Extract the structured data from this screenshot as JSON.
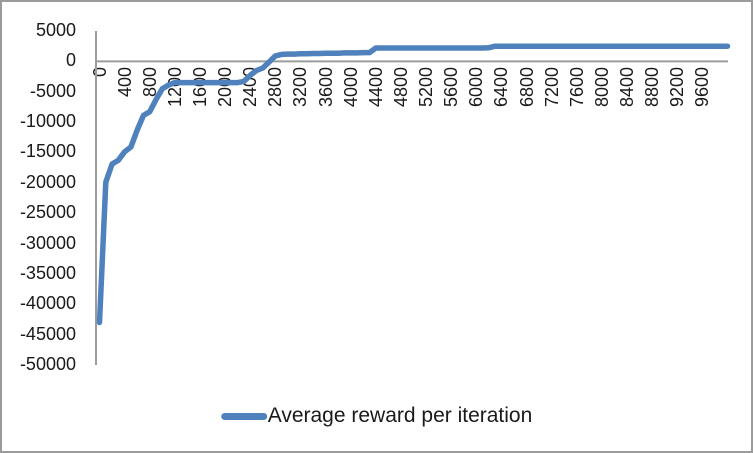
{
  "chart_data": {
    "type": "line",
    "title": "",
    "xlabel": "",
    "ylabel": "",
    "xlim": [
      0,
      10000
    ],
    "ylim": [
      -50000,
      5000
    ],
    "grid": "zero-line-only",
    "legend_position": "bottom-center",
    "xticks": [
      0,
      400,
      800,
      1200,
      1600,
      2000,
      2400,
      2800,
      3200,
      3600,
      4000,
      4400,
      4800,
      5200,
      5600,
      6000,
      6400,
      6800,
      7200,
      7600,
      8000,
      8400,
      8800,
      9200,
      9600
    ],
    "yticks": [
      5000,
      0,
      -5000,
      -10000,
      -15000,
      -20000,
      -25000,
      -30000,
      -35000,
      -40000,
      -45000,
      -50000
    ],
    "series": [
      {
        "name": "Average reward per iteration",
        "x": [
          0,
          100,
          200,
          300,
          400,
          500,
          600,
          700,
          800,
          900,
          1000,
          1100,
          1200,
          1300,
          1400,
          1500,
          1600,
          1700,
          1800,
          1900,
          2000,
          2100,
          2200,
          2300,
          2400,
          2500,
          2600,
          2700,
          2800,
          2900,
          3000,
          3100,
          3200,
          3300,
          3400,
          3500,
          3600,
          3700,
          3800,
          3900,
          4000,
          4100,
          4200,
          4300,
          4400,
          4500,
          4600,
          4700,
          4800,
          4900,
          5000,
          5100,
          5200,
          5300,
          5400,
          5500,
          5600,
          5700,
          5800,
          5900,
          6000,
          6100,
          6200,
          6300,
          6400,
          6500,
          6600,
          6700,
          6800,
          6900,
          7000,
          7100,
          7200,
          7300,
          7400,
          7500,
          7600,
          7700,
          7800,
          7900,
          8000,
          8100,
          8200,
          8300,
          8400,
          8500,
          8600,
          8700,
          8800,
          8900,
          9000,
          9100,
          9200,
          9300,
          9400,
          9500,
          9600,
          9700,
          9800,
          9900,
          10000
        ],
        "y": [
          -43000,
          -19900,
          -16900,
          -16300,
          -14900,
          -14100,
          -11300,
          -8900,
          -8300,
          -6300,
          -4500,
          -3900,
          -3500,
          -3500,
          -3500,
          -3500,
          -3500,
          -3500,
          -3500,
          -3500,
          -3500,
          -3500,
          -3500,
          -3300,
          -2300,
          -1500,
          -1100,
          -100,
          900,
          1150,
          1200,
          1200,
          1250,
          1250,
          1300,
          1300,
          1350,
          1350,
          1350,
          1400,
          1400,
          1400,
          1450,
          1450,
          2200,
          2200,
          2200,
          2200,
          2200,
          2200,
          2200,
          2200,
          2200,
          2200,
          2200,
          2200,
          2200,
          2200,
          2200,
          2200,
          2200,
          2200,
          2250,
          2500,
          2500,
          2500,
          2500,
          2500,
          2500,
          2500,
          2500,
          2500,
          2500,
          2500,
          2500,
          2500,
          2500,
          2500,
          2500,
          2500,
          2500,
          2500,
          2500,
          2500,
          2500,
          2500,
          2500,
          2500,
          2500,
          2500,
          2500,
          2500,
          2500,
          2500,
          2500,
          2500,
          2500,
          2500,
          2500,
          2500,
          2500
        ]
      }
    ],
    "colors": {
      "line": "#4F81BD",
      "axis": "#9c9c9c",
      "text": "#1a1a1a",
      "border": "#9b9b9b",
      "background": "#ffffff"
    }
  },
  "legend": {
    "label": "Average reward per iteration"
  }
}
